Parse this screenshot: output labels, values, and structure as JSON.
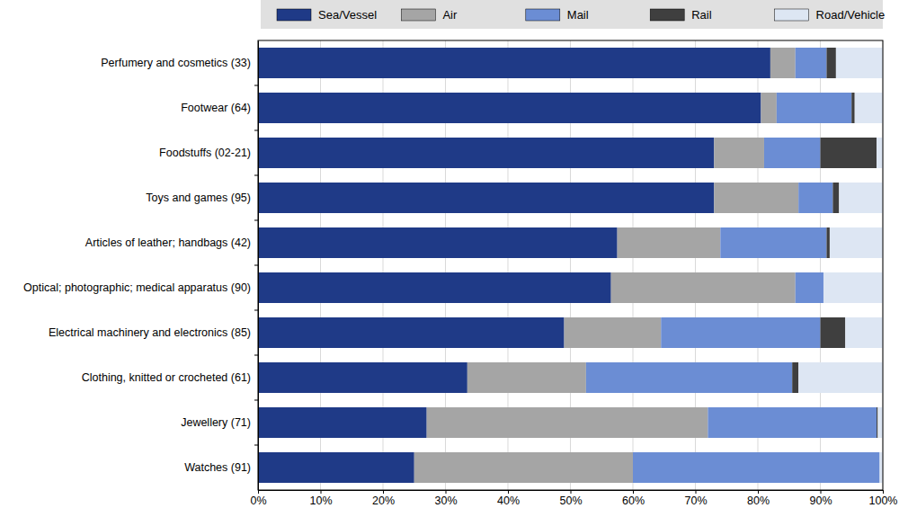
{
  "chart_data": {
    "type": "bar",
    "orientation": "horizontal",
    "stacked": true,
    "grid": true,
    "legend": "top",
    "categories": [
      "Perfumery and cosmetics (33)",
      "Footwear (64)",
      "Foodstuffs (02-21)",
      "Toys and games (95)",
      "Articles of leather; handbags (42)",
      "Optical; photographic; medical apparatus (90)",
      "Electrical machinery and electronics (85)",
      "Clothing, knitted or crocheted (61)",
      "Jewellery (71)",
      "Watches (91)"
    ],
    "series": [
      {
        "name": "Sea/Vessel",
        "color": "#1f3a87",
        "values": [
          82,
          80.5,
          73,
          73,
          57.5,
          56.5,
          49,
          33.5,
          27,
          25
        ]
      },
      {
        "name": "Air",
        "color": "#a5a5a5",
        "values": [
          4,
          2.5,
          8,
          13.5,
          16.5,
          29.5,
          15.5,
          19,
          45,
          35
        ]
      },
      {
        "name": "Mail",
        "color": "#6b8dd4",
        "values": [
          5,
          12,
          9,
          5.5,
          17,
          4.5,
          25.5,
          33,
          27,
          39.5
        ]
      },
      {
        "name": "Rail",
        "color": "#3f3f3f",
        "values": [
          1.5,
          0.5,
          9,
          1,
          0.5,
          0,
          4,
          1,
          0.2,
          0
        ]
      },
      {
        "name": "Road/Vehicle",
        "color": "#dde6f3",
        "values": [
          7.5,
          4.5,
          1,
          7,
          8.5,
          9.5,
          6,
          13.5,
          0.8,
          0.5
        ]
      }
    ],
    "xlim": [
      0,
      100
    ],
    "xticks": [
      {
        "value": 0,
        "label": "0%"
      },
      {
        "value": 10,
        "label": "10%"
      },
      {
        "value": 20,
        "label": "20%"
      },
      {
        "value": 30,
        "label": "30%"
      },
      {
        "value": 40,
        "label": "40%"
      },
      {
        "value": 50,
        "label": "50%"
      },
      {
        "value": 60,
        "label": "60%"
      },
      {
        "value": 70,
        "label": "70%"
      },
      {
        "value": 80,
        "label": "80%"
      },
      {
        "value": 90,
        "label": "90%"
      },
      {
        "value": 100,
        "label": "100%"
      }
    ]
  }
}
